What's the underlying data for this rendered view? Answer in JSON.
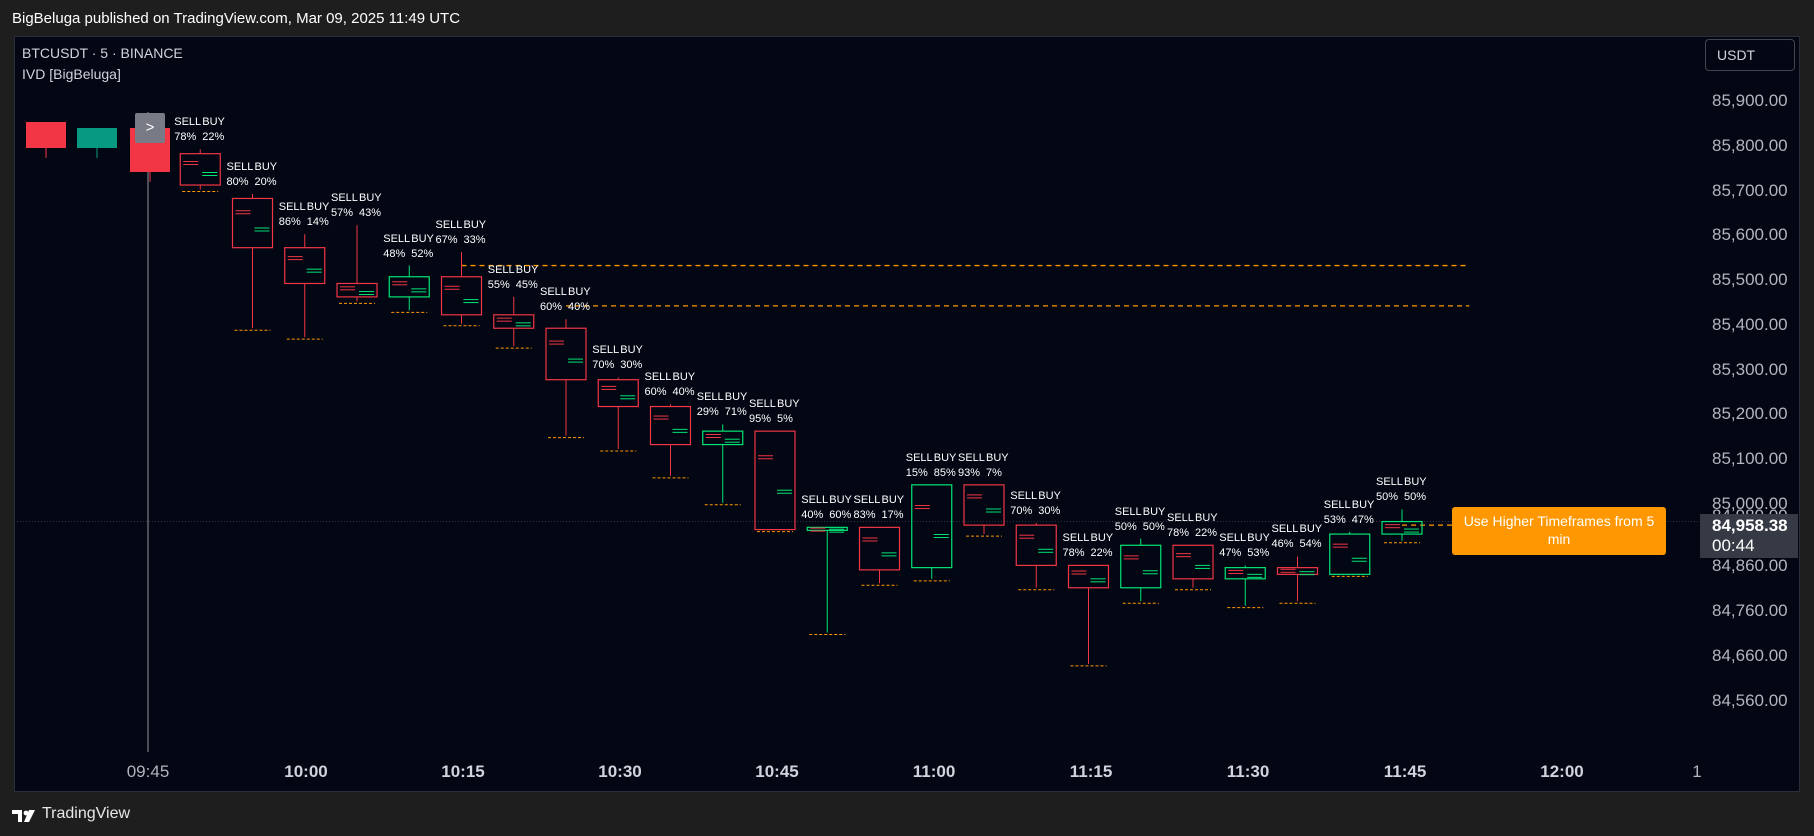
{
  "header": {
    "published_text": "BigBeluga published on TradingView.com, Mar 09, 2025 11:49 UTC"
  },
  "chart": {
    "symbol_line": "BTCUSDT · 5 · BINANCE",
    "indicator_name": "IVD [BigBeluga]",
    "currency_label": "USDT",
    "legend_nav_label": ">",
    "current_price": "84,958.38",
    "countdown": "00:44",
    "timeframe_notice": "Use Higher Timeframes from 5 min",
    "hidden_price_label": "84,980.00",
    "colors": {
      "bull": "#00e676",
      "bear": "#f23645",
      "level": "#ff9800",
      "background": "#030613"
    }
  },
  "chart_data": {
    "type": "candlestick",
    "y_axis_labels": [
      "85,900.00",
      "85,800.00",
      "85,700.00",
      "85,600.00",
      "85,500.00",
      "85,400.00",
      "85,300.00",
      "85,200.00",
      "85,100.00",
      "85,000.00",
      "84,860.00",
      "84,760.00",
      "84,660.00",
      "84,560.00"
    ],
    "x_axis_labels": [
      "09:45",
      "10:00",
      "10:15",
      "10:30",
      "10:45",
      "11:00",
      "11:15",
      "11:30",
      "11:45",
      "12:00",
      "1"
    ],
    "ylim": [
      84480,
      86000
    ],
    "x_range": [
      "09:30",
      "12:10"
    ],
    "candles": [
      {
        "time": "09:50",
        "open": 85780,
        "close": 85710,
        "high": 85790,
        "low": 85700,
        "sell": "78%",
        "buy": "22%"
      },
      {
        "time": "09:55",
        "open": 85680,
        "close": 85570,
        "high": 85690,
        "low": 85390,
        "sell": "80%",
        "buy": "20%"
      },
      {
        "time": "10:00",
        "open": 85570,
        "close": 85490,
        "high": 85600,
        "low": 85370,
        "sell": "86%",
        "buy": "14%"
      },
      {
        "time": "10:05",
        "open": 85490,
        "close": 85460,
        "high": 85620,
        "low": 85450,
        "sell": "57%",
        "buy": "43%"
      },
      {
        "time": "10:10",
        "open": 85460,
        "close": 85505,
        "high": 85530,
        "low": 85430,
        "sell": "48%",
        "buy": "52%"
      },
      {
        "time": "10:15",
        "open": 85505,
        "close": 85420,
        "high": 85560,
        "low": 85400,
        "sell": "67%",
        "buy": "33%"
      },
      {
        "time": "10:20",
        "open": 85420,
        "close": 85390,
        "high": 85460,
        "low": 85350,
        "sell": "55%",
        "buy": "45%"
      },
      {
        "time": "10:25",
        "open": 85390,
        "close": 85275,
        "high": 85410,
        "low": 85150,
        "sell": "60%",
        "buy": "40%"
      },
      {
        "time": "10:30",
        "open": 85275,
        "close": 85215,
        "high": 85280,
        "low": 85120,
        "sell": "70%",
        "buy": "30%"
      },
      {
        "time": "10:35",
        "open": 85215,
        "close": 85130,
        "high": 85220,
        "low": 85060,
        "sell": "60%",
        "buy": "40%"
      },
      {
        "time": "10:40",
        "open": 85130,
        "close": 85160,
        "high": 85175,
        "low": 85000,
        "sell": "29%",
        "buy": "71%"
      },
      {
        "time": "10:45",
        "open": 85160,
        "close": 84940,
        "high": 85160,
        "low": 84940,
        "sell": "95%",
        "buy": "5%"
      },
      {
        "time": "10:50",
        "open": 84940,
        "close": 84945,
        "high": 84945,
        "low": 84710,
        "sell": "40%",
        "buy": "60%"
      },
      {
        "time": "10:55",
        "open": 84945,
        "close": 84850,
        "high": 84945,
        "low": 84820,
        "sell": "83%",
        "buy": "17%"
      },
      {
        "time": "11:00",
        "open": 84855,
        "close": 85040,
        "high": 85040,
        "low": 84830,
        "sell": "15%",
        "buy": "85%"
      },
      {
        "time": "11:05",
        "open": 85040,
        "close": 84950,
        "high": 85040,
        "low": 84930,
        "sell": "93%",
        "buy": "7%"
      },
      {
        "time": "11:10",
        "open": 84950,
        "close": 84860,
        "high": 84955,
        "low": 84810,
        "sell": "70%",
        "buy": "30%"
      },
      {
        "time": "11:15",
        "open": 84860,
        "close": 84810,
        "high": 84860,
        "low": 84640,
        "sell": "78%",
        "buy": "22%"
      },
      {
        "time": "11:20",
        "open": 84810,
        "close": 84905,
        "high": 84920,
        "low": 84780,
        "sell": "50%",
        "buy": "50%"
      },
      {
        "time": "11:25",
        "open": 84905,
        "close": 84830,
        "high": 84905,
        "low": 84810,
        "sell": "78%",
        "buy": "22%"
      },
      {
        "time": "11:30",
        "open": 84830,
        "close": 84855,
        "high": 84860,
        "low": 84770,
        "sell": "47%",
        "buy": "53%"
      },
      {
        "time": "11:35",
        "open": 84855,
        "close": 84840,
        "high": 84880,
        "low": 84780,
        "sell": "46%",
        "buy": "54%"
      },
      {
        "time": "11:40",
        "open": 84840,
        "close": 84930,
        "high": 84935,
        "low": 84840,
        "sell": "53%",
        "buy": "47%"
      },
      {
        "time": "11:45",
        "open": 84930,
        "close": 84958,
        "high": 84985,
        "low": 84915,
        "sell": "50%",
        "buy": "50%"
      }
    ],
    "legend_boxes": [
      {
        "color": "#f23645"
      },
      {
        "color": "#089981"
      },
      {
        "color": "#f23645"
      }
    ],
    "levels": [
      {
        "price": 85530,
        "from": "10:15",
        "to": "11:50"
      },
      {
        "price": 85440,
        "from": "10:25",
        "to": "11:50"
      },
      {
        "price": 84950,
        "from": "11:45",
        "to": "11:50"
      }
    ],
    "cursor_time": "09:45"
  }
}
